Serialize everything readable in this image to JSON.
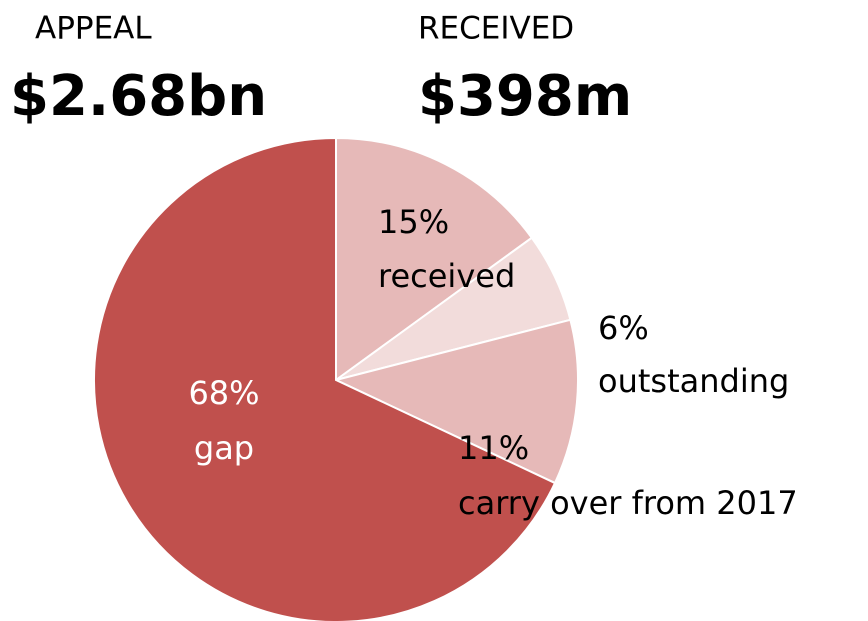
{
  "chart_data": {
    "type": "pie",
    "annotations": [
      {
        "heading": "APPEAL",
        "amount": "$2.68bn"
      },
      {
        "heading": "RECEIVED",
        "amount": "$398m"
      }
    ],
    "categories": [
      "received",
      "outstanding",
      "carry over from 2017",
      "gap"
    ],
    "values": [
      15,
      6,
      11,
      68
    ],
    "value_labels": [
      "15%",
      "6%",
      "11%",
      "68%"
    ],
    "colors": [
      "#e6b9b8",
      "#f2dcdb",
      "#e6b9b8",
      "#c0504d"
    ],
    "label_colors": [
      "#000000",
      "#000000",
      "#000000",
      "#ffffff"
    ]
  }
}
